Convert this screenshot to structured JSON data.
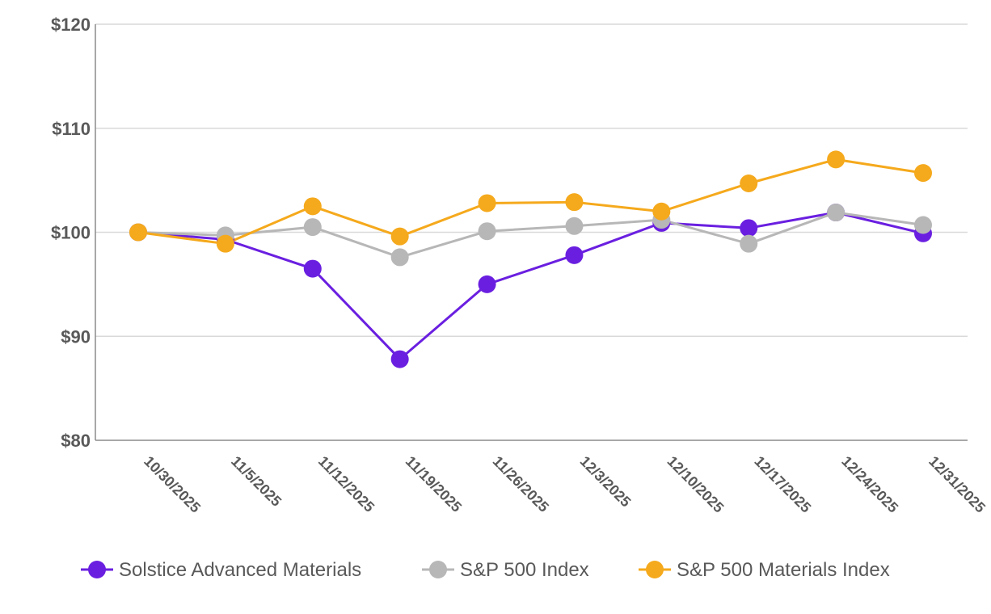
{
  "chart_data": {
    "type": "line",
    "title": "",
    "xlabel": "",
    "ylabel": "",
    "categories": [
      "10/30/2025",
      "11/5/2025",
      "11/12/2025",
      "11/19/2025",
      "11/26/2025",
      "12/3/2025",
      "12/10/2025",
      "12/17/2025",
      "12/24/2025",
      "12/31/2025"
    ],
    "ylim": [
      80,
      120
    ],
    "yticks": [
      80,
      90,
      100,
      110,
      120
    ],
    "ytick_labels": [
      "$80",
      "$90",
      "$100",
      "$110",
      "$120"
    ],
    "grid": true,
    "legend_position": "bottom",
    "series": [
      {
        "name": "Solstice Advanced Materials",
        "color": "#6a1fe0",
        "values": [
          100.0,
          99.3,
          96.5,
          87.8,
          95.0,
          97.8,
          100.9,
          100.4,
          101.9,
          99.9
        ]
      },
      {
        "name": "S&P 500 Index",
        "color": "#b7b7b7",
        "values": [
          100.0,
          99.7,
          100.5,
          97.6,
          100.1,
          100.6,
          101.2,
          98.9,
          101.9,
          100.7
        ]
      },
      {
        "name": "S&P 500 Materials Index",
        "color": "#f5a91c",
        "values": [
          100.0,
          98.9,
          102.5,
          99.6,
          102.8,
          102.9,
          102.0,
          104.7,
          107.0,
          105.7
        ]
      }
    ]
  }
}
